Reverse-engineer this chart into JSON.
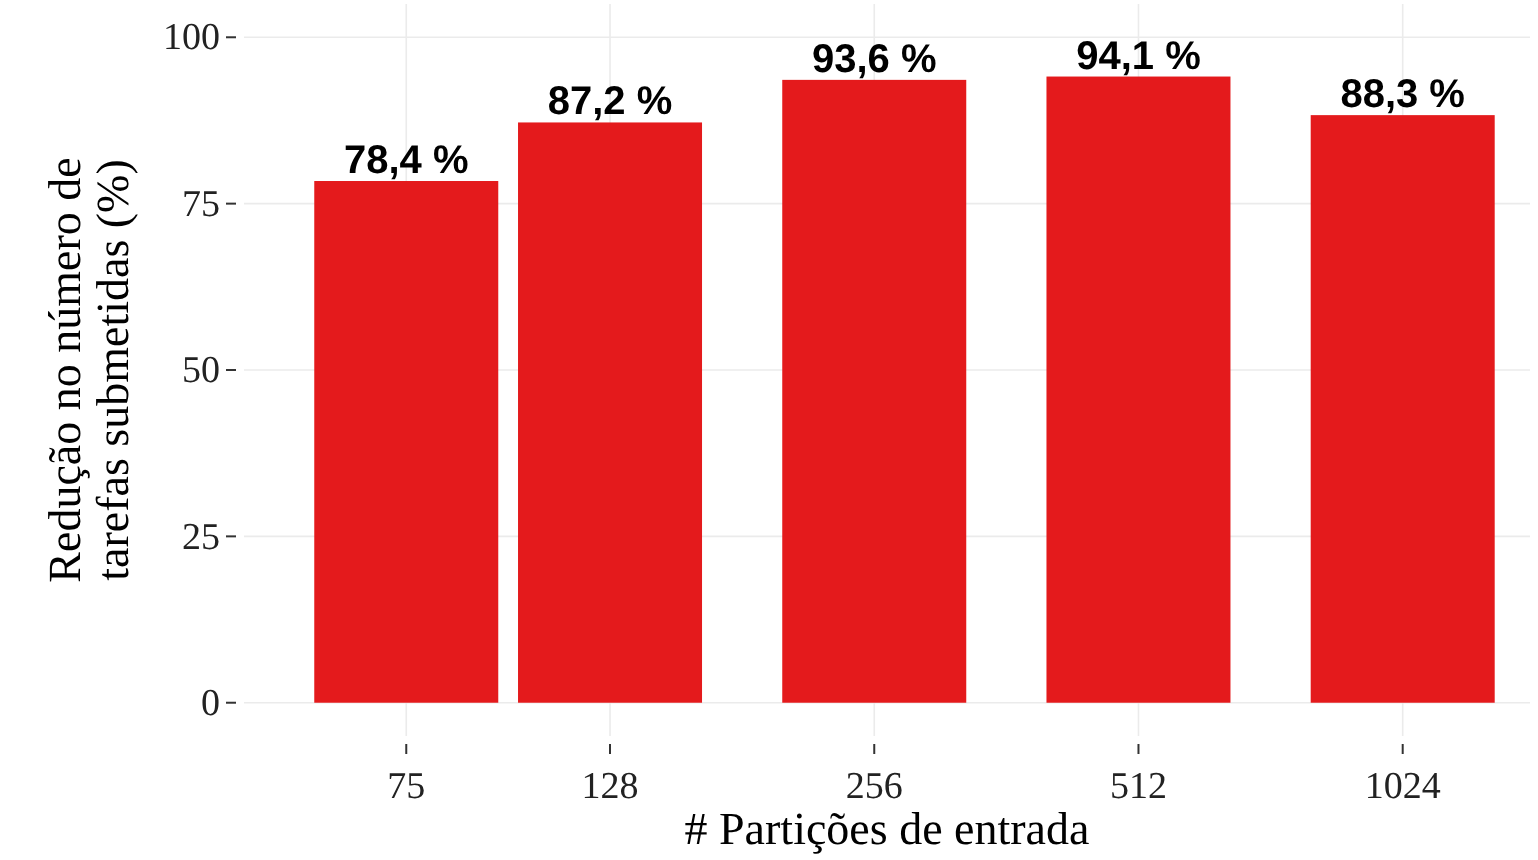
{
  "chart_data": {
    "type": "bar",
    "xlabel": "# Partições de entrada",
    "ylabel": "Redução no número de\ntarefas submetidas (%)",
    "x": [
      75,
      128,
      256,
      512,
      1024
    ],
    "values": [
      78.4,
      87.2,
      93.6,
      94.1,
      88.3
    ],
    "value_labels": [
      "78,4 %",
      "87,2 %",
      "93,6 %",
      "94,1 %",
      "88,3 %"
    ],
    "color": "#e41a1c",
    "log": "x",
    "xlim": [
      49,
      1430
    ],
    "xticks": [
      75,
      128,
      256,
      512,
      1024
    ],
    "ylim": [
      -5,
      105
    ],
    "yticks": [
      0,
      25,
      50,
      75,
      100
    ],
    "grid": true
  }
}
